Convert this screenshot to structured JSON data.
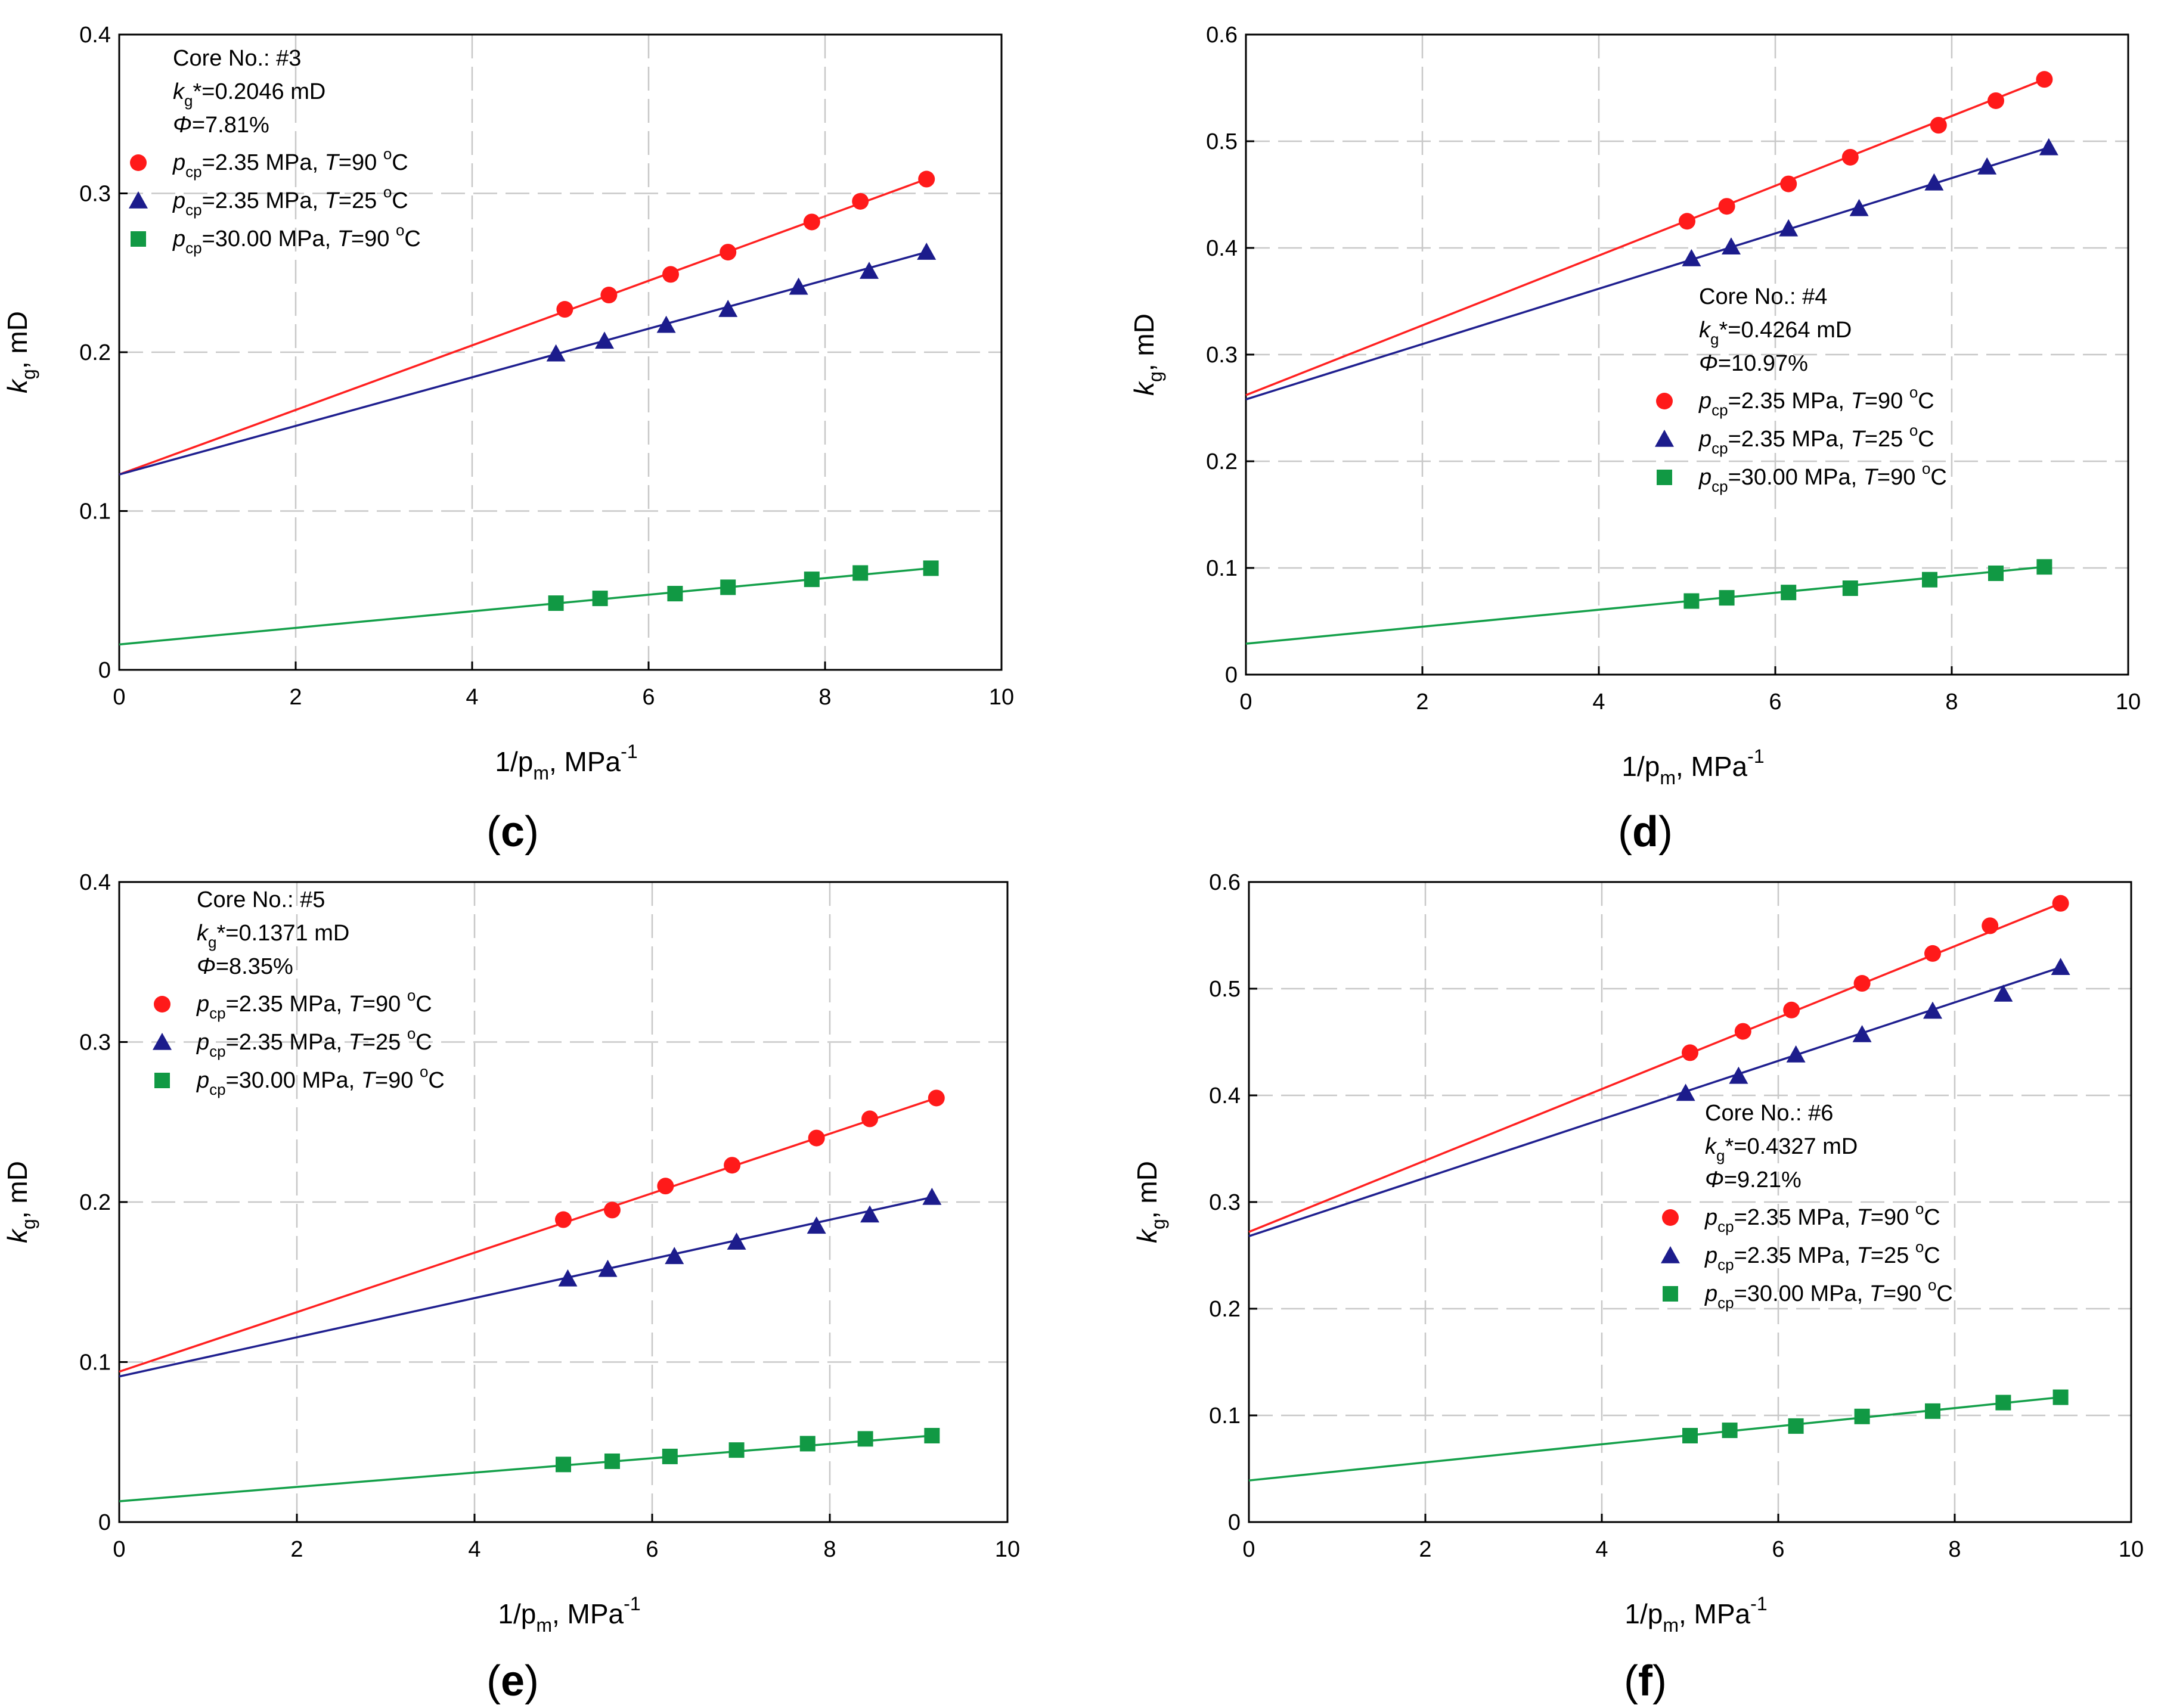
{
  "colors": {
    "red": "#ff1a1a",
    "red_line": "#ff2020",
    "blue": "#1c1c8c",
    "blue_line": "#1f1f8f",
    "green": "#119944",
    "green_line": "#14a04a",
    "grid": "#c8c8c8",
    "axis": "#000000"
  },
  "shared": {
    "xlabel_main": "1/p",
    "xlabel_sub": "m",
    "xlabel_unit": ", MPa",
    "xlabel_sup": "-1",
    "ylabel_main": "k",
    "ylabel_sub": "g",
    "ylabel_unit": ", mD",
    "legend_p": "p",
    "legend_cp": "cp",
    "legend_T": "T",
    "legend_deg": "o",
    "legend_C": "C",
    "kstar_k": "k",
    "kstar_g": "g",
    "phi_symbol": "Φ",
    "series_texts": [
      {
        "val": "=2.35 MPa, ",
        "temp": "=90 "
      },
      {
        "val": "=2.35 MPa, ",
        "temp": "=25 "
      },
      {
        "val": "=30.00 MPa, ",
        "temp": "=90 "
      }
    ]
  },
  "chart_data": [
    {
      "type": "scatter",
      "panel_label": "c",
      "core": "Core No.: #3",
      "kstar_value": "*=0.2046 mD",
      "phi_value": "=7.81%",
      "xlim": [
        0,
        10
      ],
      "ylim": [
        0,
        0.4
      ],
      "xticks": [
        "0",
        "2",
        "4",
        "6",
        "8",
        "10"
      ],
      "yticks": [
        "0",
        "0.1",
        "0.2",
        "0.3",
        "0.4"
      ],
      "series": [
        {
          "marker": "circle",
          "x": [
            5.05,
            5.55,
            6.25,
            6.9,
            7.85,
            8.4,
            9.15
          ],
          "y": [
            0.227,
            0.236,
            0.249,
            0.263,
            0.282,
            0.295,
            0.309
          ],
          "fit": [
            [
              0,
              0.123
            ],
            [
              9.15,
              0.309
            ]
          ]
        },
        {
          "marker": "triangle",
          "x": [
            4.95,
            5.5,
            6.2,
            6.9,
            7.7,
            8.5,
            9.15
          ],
          "y": [
            0.199,
            0.207,
            0.217,
            0.227,
            0.241,
            0.251,
            0.263
          ],
          "fit": [
            [
              0,
              0.123
            ],
            [
              9.15,
              0.263
            ]
          ]
        },
        {
          "marker": "square",
          "x": [
            4.95,
            5.45,
            6.3,
            6.9,
            7.85,
            8.4,
            9.2
          ],
          "y": [
            0.042,
            0.045,
            0.048,
            0.052,
            0.057,
            0.061,
            0.064
          ],
          "fit": [
            [
              0,
              0.016
            ],
            [
              9.2,
              0.064
            ]
          ]
        }
      ]
    },
    {
      "type": "scatter",
      "panel_label": "d",
      "core": "Core No.: #4",
      "kstar_value": "*=0.4264 mD",
      "phi_value": "=10.97%",
      "xlim": [
        0,
        10
      ],
      "ylim": [
        0,
        0.6
      ],
      "xticks": [
        "0",
        "2",
        "4",
        "6",
        "8",
        "10"
      ],
      "yticks": [
        "0",
        "0.1",
        "0.2",
        "0.3",
        "0.4",
        "0.5",
        "0.6"
      ],
      "series": [
        {
          "marker": "circle",
          "x": [
            5.0,
            5.45,
            6.15,
            6.85,
            7.85,
            8.5,
            9.05
          ],
          "y": [
            0.425,
            0.439,
            0.46,
            0.485,
            0.515,
            0.538,
            0.558
          ],
          "fit": [
            [
              0,
              0.262
            ],
            [
              9.05,
              0.558
            ]
          ]
        },
        {
          "marker": "triangle",
          "x": [
            5.05,
            5.5,
            6.15,
            6.95,
            7.8,
            8.4,
            9.1
          ],
          "y": [
            0.39,
            0.401,
            0.418,
            0.437,
            0.461,
            0.476,
            0.494
          ],
          "fit": [
            [
              0,
              0.258
            ],
            [
              9.1,
              0.494
            ]
          ]
        },
        {
          "marker": "square",
          "x": [
            5.05,
            5.45,
            6.15,
            6.85,
            7.75,
            8.5,
            9.05
          ],
          "y": [
            0.069,
            0.072,
            0.077,
            0.081,
            0.089,
            0.095,
            0.101
          ],
          "fit": [
            [
              0,
              0.029
            ],
            [
              9.05,
              0.101
            ]
          ]
        }
      ]
    },
    {
      "type": "scatter",
      "panel_label": "e",
      "core": "Core No.: #5",
      "kstar_value": "*=0.1371 mD",
      "phi_value": "=8.35%",
      "xlim": [
        0,
        10
      ],
      "ylim": [
        0,
        0.4
      ],
      "xticks": [
        "0",
        "2",
        "4",
        "6",
        "8",
        "10"
      ],
      "yticks": [
        "0",
        "0.1",
        "0.2",
        "0.3",
        "0.4"
      ],
      "series": [
        {
          "marker": "circle",
          "x": [
            5.0,
            5.55,
            6.15,
            6.9,
            7.85,
            8.45,
            9.2
          ],
          "y": [
            0.189,
            0.195,
            0.21,
            0.223,
            0.24,
            0.252,
            0.265
          ],
          "fit": [
            [
              0,
              0.094
            ],
            [
              9.2,
              0.265
            ]
          ]
        },
        {
          "marker": "triangle",
          "x": [
            5.05,
            5.5,
            6.25,
            6.95,
            7.85,
            8.45,
            9.15
          ],
          "y": [
            0.152,
            0.158,
            0.166,
            0.175,
            0.185,
            0.192,
            0.203
          ],
          "fit": [
            [
              0,
              0.091
            ],
            [
              9.15,
              0.203
            ]
          ]
        },
        {
          "marker": "square",
          "x": [
            5.0,
            5.55,
            6.2,
            6.95,
            7.75,
            8.4,
            9.15
          ],
          "y": [
            0.036,
            0.038,
            0.041,
            0.045,
            0.049,
            0.052,
            0.054
          ],
          "fit": [
            [
              0,
              0.013
            ],
            [
              9.15,
              0.054
            ]
          ]
        }
      ]
    },
    {
      "type": "scatter",
      "panel_label": "f",
      "core": "Core No.: #6",
      "kstar_value": "*=0.4327 mD",
      "phi_value": "=9.21%",
      "xlim": [
        0,
        10
      ],
      "ylim": [
        0,
        0.6
      ],
      "xticks": [
        "0",
        "2",
        "4",
        "6",
        "8",
        "10"
      ],
      "yticks": [
        "0",
        "0.1",
        "0.2",
        "0.3",
        "0.4",
        "0.5",
        "0.6"
      ],
      "series": [
        {
          "marker": "circle",
          "x": [
            5.0,
            5.6,
            6.15,
            6.95,
            7.75,
            8.4,
            9.2
          ],
          "y": [
            0.44,
            0.46,
            0.48,
            0.505,
            0.533,
            0.559,
            0.58
          ],
          "fit": [
            [
              0,
              0.272
            ],
            [
              9.2,
              0.58
            ]
          ]
        },
        {
          "marker": "triangle",
          "x": [
            4.95,
            5.55,
            6.2,
            6.95,
            7.75,
            8.55,
            9.2
          ],
          "y": [
            0.402,
            0.418,
            0.438,
            0.457,
            0.479,
            0.495,
            0.52
          ],
          "fit": [
            [
              0,
              0.268
            ],
            [
              9.2,
              0.52
            ]
          ]
        },
        {
          "marker": "square",
          "x": [
            5.0,
            5.45,
            6.2,
            6.95,
            7.75,
            8.55,
            9.2
          ],
          "y": [
            0.081,
            0.086,
            0.09,
            0.099,
            0.104,
            0.112,
            0.117
          ],
          "fit": [
            [
              0,
              0.039
            ],
            [
              9.2,
              0.117
            ]
          ]
        }
      ]
    }
  ]
}
